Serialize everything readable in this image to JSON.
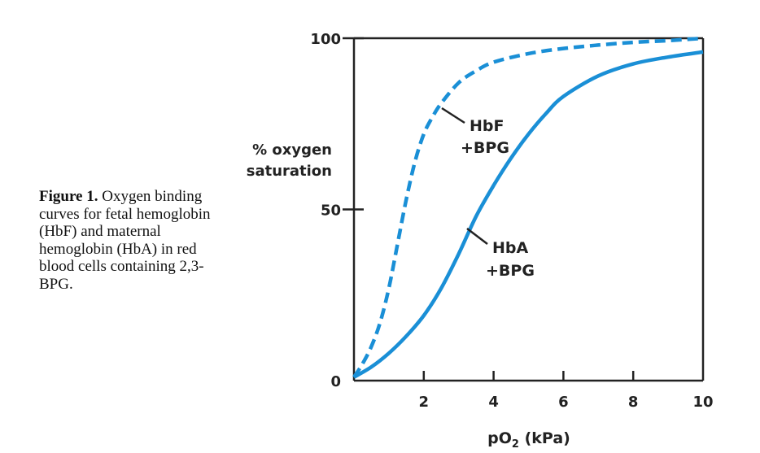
{
  "caption": {
    "bold": "Figure 1.",
    "text": " Oxygen binding curves for fetal hemoglobin (HbF) and maternal hemoglobin (HbA) in red blood cells containing 2,3-BPG."
  },
  "chart_data": {
    "type": "line",
    "title": "",
    "ylabel_line1": "% oxygen",
    "ylabel_line2": "saturation",
    "xlabel_main": "pO",
    "xlabel_sub": "2",
    "xlabel_unit": " (kPa)",
    "xlim": [
      0,
      10
    ],
    "ylim": [
      0,
      100
    ],
    "x_ticks": [
      2,
      4,
      6,
      8,
      10
    ],
    "x_tick_labels": [
      "2",
      "4",
      "6",
      "8",
      "10"
    ],
    "y_ticks": [
      0,
      50,
      100
    ],
    "y_tick_labels": [
      "0",
      "50",
      "100"
    ],
    "grid": false,
    "series": [
      {
        "name_line1": "HbF",
        "name_line2": "+BPG",
        "style": "dashed",
        "color": "#1a8fd6",
        "x": [
          0,
          0.25,
          0.5,
          0.75,
          1.0,
          1.25,
          1.5,
          1.75,
          2.0,
          2.25,
          2.5,
          3.0,
          3.5,
          4.0,
          5.0,
          6.0,
          7.0,
          8.0,
          9.0,
          10.0
        ],
        "y": [
          1,
          5,
          10,
          17,
          27,
          40,
          53,
          64,
          72,
          77,
          81,
          87,
          90.5,
          93,
          95.5,
          97,
          98,
          98.8,
          99.3,
          100
        ]
      },
      {
        "name_line1": "HbA",
        "name_line2": "+BPG",
        "style": "solid",
        "color": "#1a8fd6",
        "x": [
          0,
          0.5,
          1.0,
          1.5,
          2.0,
          2.5,
          3.0,
          3.5,
          4.0,
          4.5,
          5.0,
          5.5,
          6.0,
          7.0,
          8.0,
          9.0,
          10.0
        ],
        "y": [
          1,
          4,
          8,
          13,
          19,
          27,
          37,
          48,
          57,
          65,
          72,
          78,
          83,
          89,
          92.5,
          94.5,
          96
        ]
      }
    ]
  }
}
